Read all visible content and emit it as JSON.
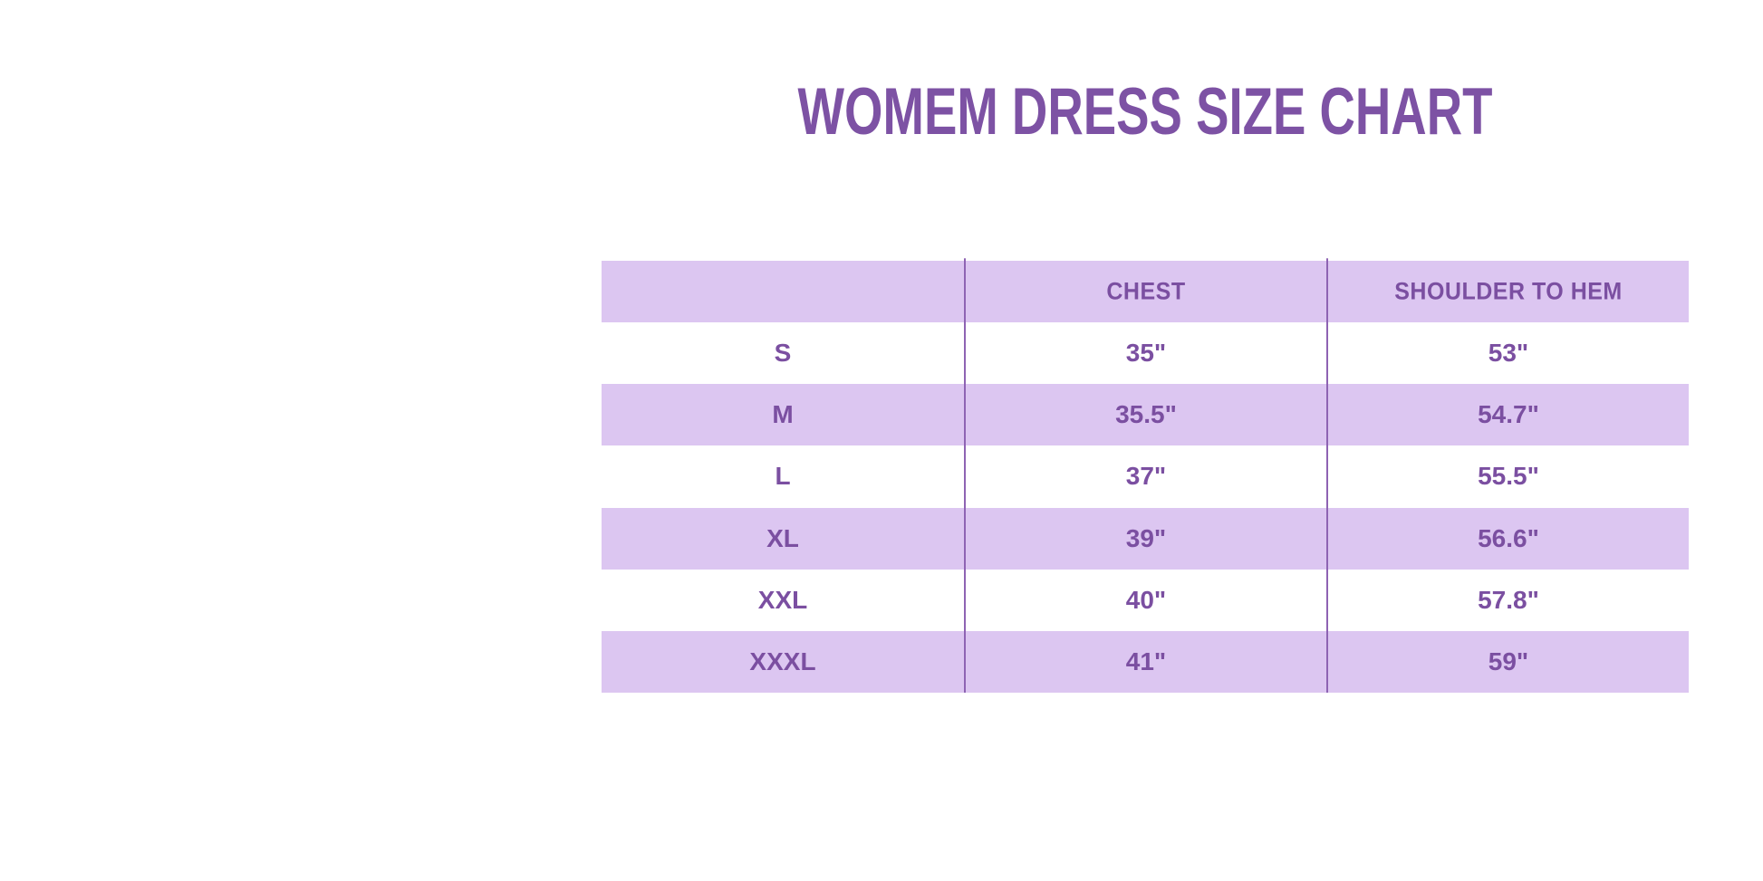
{
  "page": {
    "title": "WOMEM DRESS SIZE CHART"
  },
  "colors": {
    "background": "#ffffff",
    "title_purple": "#7d52a4",
    "text_purple": "#7b4fa1",
    "row_lavender": "#dcc6f1",
    "divider_purple": "#8e63b3"
  },
  "chart_data": {
    "type": "table",
    "title": "WOMEM DRESS SIZE CHART",
    "columns": [
      "",
      "CHEST",
      "SHOULDER TO HEM"
    ],
    "rows": [
      [
        "S",
        "35\"",
        "53\""
      ],
      [
        "M",
        "35.5\"",
        "54.7\""
      ],
      [
        "L",
        "37\"",
        "55.5\""
      ],
      [
        "XL",
        "39\"",
        "56.6\""
      ],
      [
        "XXL",
        "40\"",
        "57.8\""
      ],
      [
        "XXXL",
        "41\"",
        "59\""
      ]
    ],
    "layout": "header row and alternating data rows (M, XL, XXXL) shaded lavender; white otherwise; two full-height vertical column dividers; no horizontal borders; all text centered"
  }
}
